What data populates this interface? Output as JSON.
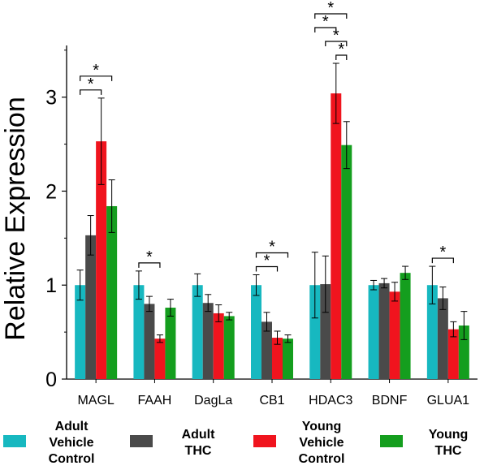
{
  "chart_data": {
    "type": "bar",
    "ylabel": "Relative Expression",
    "xlabel": "",
    "ylim": [
      0,
      3.55
    ],
    "yticks": [
      0,
      1,
      2,
      3
    ],
    "categories": [
      "MAGL",
      "FAAH",
      "DagLa",
      "CB1",
      "HDAC3",
      "BDNF",
      "GLUA1"
    ],
    "series": [
      {
        "name": "Adult Vehicle Control",
        "label_lines": [
          "Adult",
          "Vehicle",
          "Control"
        ],
        "color": "#17b8c0",
        "values": [
          1.0,
          1.0,
          1.0,
          1.0,
          1.0,
          1.0,
          1.0
        ],
        "errors": [
          0.16,
          0.15,
          0.12,
          0.11,
          0.35,
          0.05,
          0.2
        ]
      },
      {
        "name": "Adult THC",
        "label_lines": [
          "Adult",
          "THC"
        ],
        "color": "#4a4a4a",
        "values": [
          1.53,
          0.8,
          0.81,
          0.61,
          1.01,
          1.02,
          0.86
        ],
        "errors": [
          0.21,
          0.08,
          0.09,
          0.1,
          0.3,
          0.05,
          0.12
        ]
      },
      {
        "name": "Young Vehicle Control",
        "label_lines": [
          "Young",
          "Vehicle",
          "Control"
        ],
        "color": "#f0141e",
        "values": [
          2.53,
          0.43,
          0.7,
          0.44,
          3.04,
          0.93,
          0.53
        ],
        "errors": [
          0.46,
          0.04,
          0.09,
          0.07,
          0.32,
          0.1,
          0.08
        ]
      },
      {
        "name": "Young THC",
        "label_lines": [
          "Young",
          "THC"
        ],
        "color": "#149e1e",
        "values": [
          1.84,
          0.76,
          0.67,
          0.43,
          2.49,
          1.13,
          0.57
        ],
        "errors": [
          0.28,
          0.09,
          0.04,
          0.04,
          0.25,
          0.07,
          0.15
        ]
      }
    ],
    "significance": [
      {
        "category": 0,
        "from": 0,
        "to": 2,
        "label": "*"
      },
      {
        "category": 0,
        "from": 0,
        "to": 3,
        "label": "*"
      },
      {
        "category": 1,
        "from": 0,
        "to": 2,
        "label": "*"
      },
      {
        "category": 3,
        "from": 0,
        "to": 2,
        "label": "*"
      },
      {
        "category": 3,
        "from": 0,
        "to": 3,
        "label": "*"
      },
      {
        "category": 4,
        "from": 2,
        "to": 3,
        "label": "*"
      },
      {
        "category": 4,
        "from": 1,
        "to": 3,
        "label": "*"
      },
      {
        "category": 4,
        "from": 0,
        "to": 3,
        "label": "*"
      },
      {
        "category": 4,
        "from": 0,
        "to": 2,
        "label": "*"
      },
      {
        "category": 6,
        "from": 0,
        "to": 2,
        "label": "*"
      }
    ],
    "grid": false,
    "legend_position": "bottom"
  }
}
